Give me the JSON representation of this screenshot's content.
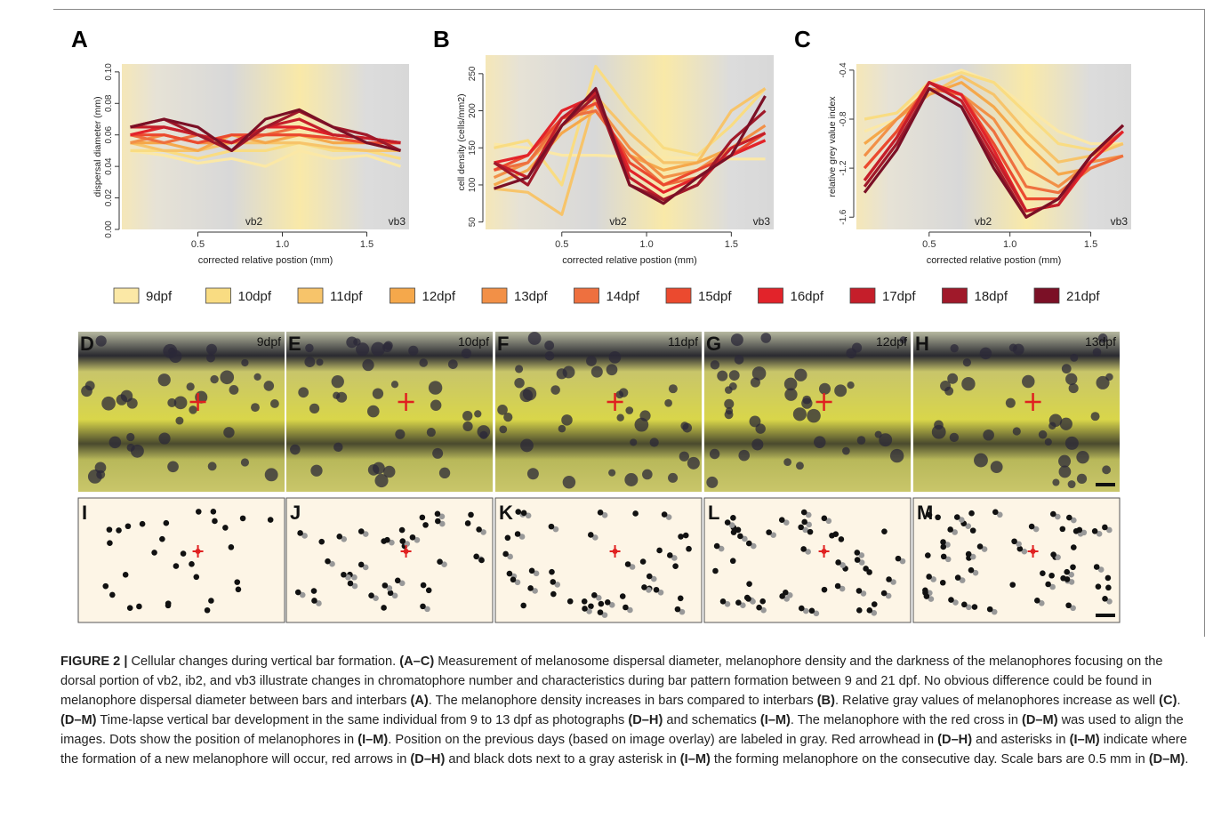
{
  "chart_data": [
    {
      "type": "line",
      "title": "A",
      "y_label": "dispersal diameter (mm)",
      "x_label": "corrected relative postion (mm)",
      "annotations": [
        "vb2",
        "vb3"
      ],
      "x": [
        0.1,
        0.3,
        0.5,
        0.7,
        0.9,
        1.1,
        1.3,
        1.5,
        1.7
      ],
      "xlim": [
        0.05,
        1.75
      ],
      "xticks": [
        0.5,
        {
          "value": 1,
          "label": "1.0"
        },
        1.5
      ],
      "ylim": [
        0,
        0.105
      ],
      "yticks": [
        {
          "value": 0,
          "label": "0.00"
        },
        {
          "value": 0.02,
          "label": "0.02"
        },
        {
          "value": 0.04,
          "label": "0.04"
        },
        {
          "value": 0.06,
          "label": "0.06"
        },
        {
          "value": 0.08,
          "label": "0.08"
        },
        {
          "value": 0.1,
          "label": "0.10"
        }
      ],
      "series": [
        {
          "values": [
            0.05,
            0.047,
            0.042,
            0.045,
            0.04,
            0.05,
            0.045,
            0.047,
            0.04
          ]
        },
        {
          "values": [
            0.05,
            0.05,
            0.045,
            0.05,
            0.05,
            0.055,
            0.05,
            0.05,
            0.045
          ]
        },
        {
          "values": [
            0.055,
            0.05,
            0.05,
            0.055,
            0.055,
            0.055,
            0.052,
            0.05,
            0.05
          ]
        },
        {
          "values": [
            0.055,
            0.055,
            0.05,
            0.06,
            0.055,
            0.06,
            0.055,
            0.055,
            0.05
          ]
        },
        {
          "values": [
            0.055,
            0.06,
            0.055,
            0.055,
            0.06,
            0.06,
            0.058,
            0.055,
            0.055
          ]
        },
        {
          "values": [
            0.06,
            0.055,
            0.06,
            0.055,
            0.06,
            0.065,
            0.06,
            0.058,
            0.055
          ]
        },
        {
          "values": [
            0.06,
            0.06,
            0.055,
            0.06,
            0.06,
            0.06,
            0.058,
            0.055,
            0.055
          ]
        },
        {
          "values": [
            0.06,
            0.065,
            0.06,
            0.055,
            0.065,
            0.065,
            0.06,
            0.058,
            0.055
          ]
        },
        {
          "values": [
            0.065,
            0.065,
            0.06,
            0.055,
            0.065,
            0.07,
            0.06,
            0.058,
            0.055
          ]
        },
        {
          "values": [
            0.065,
            0.07,
            0.06,
            0.05,
            0.065,
            0.075,
            0.065,
            0.06,
            0.05
          ]
        },
        {
          "values": [
            0.065,
            0.07,
            0.065,
            0.05,
            0.07,
            0.076,
            0.065,
            0.055,
            0.05
          ]
        }
      ]
    },
    {
      "type": "line",
      "title": "B",
      "y_label": "cell density (cells/mm2)",
      "x_label": "corrected relative postion (mm)",
      "annotations": [
        "vb2",
        "vb3"
      ],
      "x": [
        0.1,
        0.3,
        0.5,
        0.7,
        0.9,
        1.1,
        1.3,
        1.5,
        1.7
      ],
      "xlim": [
        0.05,
        1.75
      ],
      "xticks": [
        0.5,
        {
          "value": 1,
          "label": "1.0"
        },
        1.5
      ],
      "ylim": [
        40,
        275
      ],
      "yticks": [
        50,
        100,
        150,
        200,
        250
      ],
      "series": [
        {
          "values": [
            155,
            150,
            140,
            140,
            138,
            137,
            136,
            135,
            135
          ]
        },
        {
          "values": [
            150,
            160,
            100,
            260,
            200,
            150,
            140,
            180,
            230
          ]
        },
        {
          "values": [
            95,
            90,
            60,
            220,
            170,
            130,
            130,
            200,
            230
          ]
        },
        {
          "values": [
            100,
            120,
            170,
            200,
            140,
            120,
            130,
            150,
            170
          ]
        },
        {
          "values": [
            110,
            130,
            180,
            210,
            150,
            110,
            120,
            150,
            180
          ]
        },
        {
          "values": [
            120,
            130,
            190,
            200,
            140,
            100,
            110,
            140,
            160
          ]
        },
        {
          "values": [
            120,
            140,
            190,
            210,
            130,
            100,
            120,
            140,
            170
          ]
        },
        {
          "values": [
            130,
            140,
            200,
            220,
            120,
            90,
            110,
            140,
            160
          ]
        },
        {
          "values": [
            130,
            110,
            190,
            225,
            110,
            80,
            100,
            150,
            170
          ]
        },
        {
          "values": [
            130,
            100,
            180,
            220,
            100,
            80,
            100,
            160,
            200
          ]
        },
        {
          "values": [
            95,
            110,
            180,
            230,
            100,
            75,
            110,
            140,
            220
          ]
        }
      ]
    },
    {
      "type": "line",
      "title": "C",
      "y_label": "relative grey value  index",
      "x_label": "corrected relative postion (mm)",
      "annotations": [
        "vb2",
        "vb3"
      ],
      "x": [
        0.1,
        0.3,
        0.5,
        0.7,
        0.9,
        1.1,
        1.3,
        1.5,
        1.7
      ],
      "xlim": [
        0.05,
        1.75
      ],
      "xticks": [
        0.5,
        {
          "value": 1,
          "label": "1.0"
        },
        1.5
      ],
      "ylim": [
        -1.7,
        -0.35
      ],
      "yticks": [
        -1.6,
        -1.2,
        -0.8,
        -0.4
      ],
      "series": [
        {
          "values": [
            -0.9,
            -0.8,
            -0.5,
            -0.4,
            -0.5,
            -0.7,
            -0.9,
            -1.0,
            -1.0
          ]
        },
        {
          "values": [
            -0.8,
            -0.75,
            -0.5,
            -0.42,
            -0.5,
            -0.75,
            -1.0,
            -1.05,
            -1.0
          ]
        },
        {
          "values": [
            -1.0,
            -0.8,
            -0.6,
            -0.45,
            -0.6,
            -0.9,
            -1.15,
            -1.1,
            -1.0
          ]
        },
        {
          "values": [
            -1.0,
            -0.8,
            -0.6,
            -0.5,
            -0.7,
            -1.0,
            -1.25,
            -1.2,
            -1.1
          ]
        },
        {
          "values": [
            -1.1,
            -0.8,
            -0.55,
            -0.6,
            -0.8,
            -1.2,
            -1.35,
            -1.15,
            -1.1
          ]
        },
        {
          "values": [
            -1.2,
            -0.9,
            -0.55,
            -0.6,
            -0.9,
            -1.35,
            -1.4,
            -1.2,
            -1.1
          ]
        },
        {
          "values": [
            -1.2,
            -0.9,
            -0.5,
            -0.6,
            -1.0,
            -1.45,
            -1.45,
            -1.1,
            -0.9
          ]
        },
        {
          "values": [
            -1.3,
            -0.95,
            -0.5,
            -0.6,
            -1.05,
            -1.55,
            -1.5,
            -1.15,
            -0.9
          ]
        },
        {
          "values": [
            -1.3,
            -0.95,
            -0.5,
            -0.65,
            -1.1,
            -1.55,
            -1.5,
            -1.1,
            -0.85
          ]
        },
        {
          "values": [
            -1.35,
            -1.0,
            -0.55,
            -0.7,
            -1.15,
            -1.6,
            -1.45,
            -1.1,
            -0.85
          ]
        },
        {
          "values": [
            -1.4,
            -1.05,
            -0.55,
            -0.7,
            -1.2,
            -1.6,
            -1.45,
            -1.1,
            -0.85
          ]
        }
      ]
    }
  ],
  "legend": [
    {
      "name": "9dpf",
      "color": "#fbe8a6"
    },
    {
      "name": "10dpf",
      "color": "#f9dc82"
    },
    {
      "name": "11dpf",
      "color": "#f7c46a"
    },
    {
      "name": "12dpf",
      "color": "#f5a84b"
    },
    {
      "name": "13dpf",
      "color": "#f29047"
    },
    {
      "name": "14dpf",
      "color": "#ee703f"
    },
    {
      "name": "15dpf",
      "color": "#eb4a2f"
    },
    {
      "name": "16dpf",
      "color": "#e2232a"
    },
    {
      "name": "17dpf",
      "color": "#c51e2a"
    },
    {
      "name": "18dpf",
      "color": "#a0192a"
    },
    {
      "name": "21dpf",
      "color": "#7b1026"
    }
  ],
  "photos": [
    {
      "letter": "D",
      "day": "9dpf"
    },
    {
      "letter": "E",
      "day": "10dpf"
    },
    {
      "letter": "F",
      "day": "11dpf"
    },
    {
      "letter": "G",
      "day": "12dpf"
    },
    {
      "letter": "H",
      "day": "13dpf"
    }
  ],
  "schematics": [
    "I",
    "J",
    "K",
    "L",
    "M"
  ],
  "caption": [
    "FIGURE 2 |",
    " Cellular changes during vertical bar formation. ",
    "(A–C)",
    " Measurement of melanosome dispersal diameter, melanophore density and the darkness of the melanophores focusing on the dorsal portion of vb2, ib2, and vb3 illustrate changes in chromatophore number and characteristics during bar pattern formation between 9 and 21 dpf. No obvious difference could be found in melanophore dispersal diameter between bars and interbars ",
    "(A)",
    ". The melanophore density increases in bars compared to interbars ",
    "(B)",
    ". Relative gray values of melanophores increase as well ",
    "(C)",
    ". ",
    "(D–M)",
    " Time-lapse vertical bar development in the same individual from 9 to 13 dpf as photographs ",
    "(D–H)",
    " and schematics ",
    "(I–M)",
    ". The melanophore with the red cross in ",
    "(D–M)",
    " was used to align the images. Dots show the position of melanophores in ",
    "(I–M)",
    ". Position on the previous days (based on image overlay) are labeled in gray. Red arrowhead in ",
    "(D–H)",
    " and asterisks in ",
    "(I–M)",
    " indicate where the formation of a new melanophore will occur, red arrows in ",
    "(D–H)",
    " and black dots next to a gray asterisk in ",
    "(I–M)",
    " the forming melanophore on the consecutive day. Scale bars are 0.5 mm in ",
    "(D–M)",
    "."
  ]
}
